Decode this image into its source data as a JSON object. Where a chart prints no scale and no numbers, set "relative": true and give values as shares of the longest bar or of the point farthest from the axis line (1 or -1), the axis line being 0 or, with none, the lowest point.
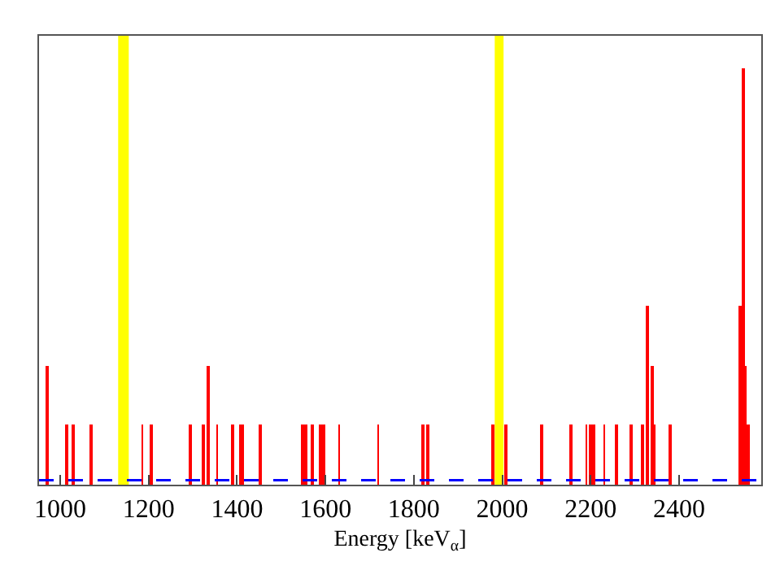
{
  "chart_data": {
    "type": "bar",
    "xlabel": "Energy [keV$_{α}$]",
    "relative": true,
    "x": [
      969,
      1014,
      1028,
      1069,
      1186,
      1207,
      1293,
      1324,
      1334,
      1355,
      1390,
      1407,
      1414,
      1452,
      1548,
      1555,
      1569,
      1590,
      1597,
      1631,
      1719,
      1821,
      1831,
      1979,
      2007,
      2090,
      2155,
      2190,
      2200,
      2207,
      2231,
      2259,
      2293,
      2317,
      2328,
      2338,
      2345,
      2379,
      2539,
      2545,
      2550,
      2556
    ],
    "values": [
      0.286,
      0.143,
      0.143,
      0.143,
      0.143,
      0.143,
      0.143,
      0.143,
      0.286,
      0.143,
      0.143,
      0.143,
      0.143,
      0.143,
      0.143,
      0.143,
      0.143,
      0.143,
      0.143,
      0.143,
      0.143,
      0.143,
      0.143,
      0.143,
      0.143,
      0.143,
      0.143,
      0.143,
      0.143,
      0.143,
      0.143,
      0.143,
      0.143,
      0.143,
      0.429,
      0.286,
      0.143,
      0.143,
      0.429,
      1,
      0.286,
      0.143
    ],
    "color": "#ff0000",
    "xlim": [
      952,
      2586
    ],
    "xticks": [
      1000,
      1200,
      1400,
      1600,
      1800,
      2000,
      2200,
      2400
    ],
    "bands": [
      {
        "axis": "x",
        "from": 1131,
        "to": 1155,
        "color": "#ffff00"
      },
      {
        "axis": "x",
        "from": 1983,
        "to": 2003,
        "color": "#ffff00"
      }
    ],
    "ref_lines": [
      {
        "axis": "y",
        "value": 0.011,
        "color": "#0000ff",
        "line_style": "dashed"
      }
    ],
    "grid": false
  }
}
